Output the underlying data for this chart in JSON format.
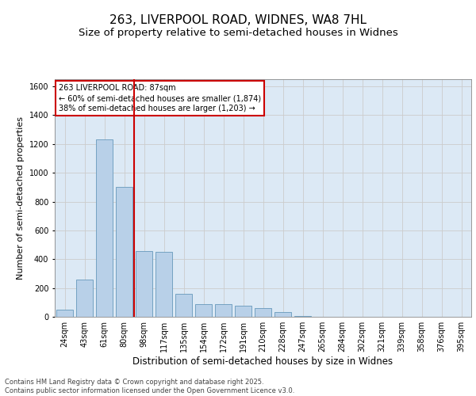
{
  "title_line1": "263, LIVERPOOL ROAD, WIDNES, WA8 7HL",
  "title_line2": "Size of property relative to semi-detached houses in Widnes",
  "xlabel": "Distribution of semi-detached houses by size in Widnes",
  "ylabel": "Number of semi-detached properties",
  "categories": [
    "24sqm",
    "43sqm",
    "61sqm",
    "80sqm",
    "98sqm",
    "117sqm",
    "135sqm",
    "154sqm",
    "172sqm",
    "191sqm",
    "210sqm",
    "228sqm",
    "247sqm",
    "265sqm",
    "284sqm",
    "302sqm",
    "321sqm",
    "339sqm",
    "358sqm",
    "376sqm",
    "395sqm"
  ],
  "values": [
    50,
    260,
    1230,
    900,
    455,
    450,
    160,
    90,
    90,
    75,
    60,
    35,
    5,
    0,
    0,
    0,
    0,
    0,
    0,
    0,
    0
  ],
  "bar_color": "#b8d0e8",
  "bar_edge_color": "#6699bb",
  "vline_x_idx": 3,
  "vline_color": "#cc0000",
  "annotation_text": "263 LIVERPOOL ROAD: 87sqm\n← 60% of semi-detached houses are smaller (1,874)\n38% of semi-detached houses are larger (1,203) →",
  "annotation_box_color": "#cc0000",
  "ylim": [
    0,
    1650
  ],
  "yticks": [
    0,
    200,
    400,
    600,
    800,
    1000,
    1200,
    1400,
    1600
  ],
  "grid_color": "#cccccc",
  "bg_color": "#dce9f5",
  "footer_text": "Contains HM Land Registry data © Crown copyright and database right 2025.\nContains public sector information licensed under the Open Government Licence v3.0.",
  "title_fontsize": 11,
  "subtitle_fontsize": 9.5,
  "xlabel_fontsize": 8.5,
  "ylabel_fontsize": 8,
  "tick_fontsize": 7,
  "ann_fontsize": 7,
  "footer_fontsize": 6
}
